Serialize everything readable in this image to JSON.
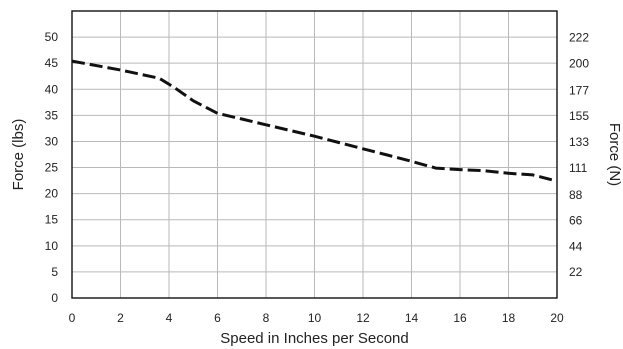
{
  "chart_data": {
    "type": "line",
    "title": "",
    "xlabel": "Speed in Inches per Second",
    "ylabel": "Force (lbs)",
    "y2label": "Force (N)",
    "xlim": [
      0,
      20
    ],
    "ylim": [
      0,
      55
    ],
    "y2lim": [
      0,
      244.7
    ],
    "grid": true,
    "legend": "none",
    "x_ticks": [
      "0",
      "2",
      "4",
      "6",
      "8",
      "10",
      "12",
      "14",
      "16",
      "18",
      "20"
    ],
    "y_ticks": [
      "0",
      "5",
      "10",
      "15",
      "20",
      "25",
      "30",
      "35",
      "40",
      "45",
      "50"
    ],
    "y2_ticks": [
      "22",
      "44",
      "66",
      "88",
      "111",
      "133",
      "155",
      "177",
      "200",
      "222"
    ],
    "colors": {
      "line": "#111111",
      "grid": "#b9b9b9"
    },
    "series": [
      {
        "x": [
          0,
          2,
          3.6,
          4.2,
          5,
          6,
          7,
          8,
          9,
          10,
          11,
          12,
          13,
          14,
          15,
          16,
          17,
          18,
          19,
          20
        ],
        "values": [
          45.4,
          43.7,
          42.1,
          40.4,
          37.8,
          35.4,
          34.3,
          33.2,
          32.1,
          31,
          29.8,
          28.6,
          27.4,
          26.2,
          24.9,
          24.6,
          24.4,
          23.9,
          23.6,
          22.4
        ]
      }
    ]
  }
}
